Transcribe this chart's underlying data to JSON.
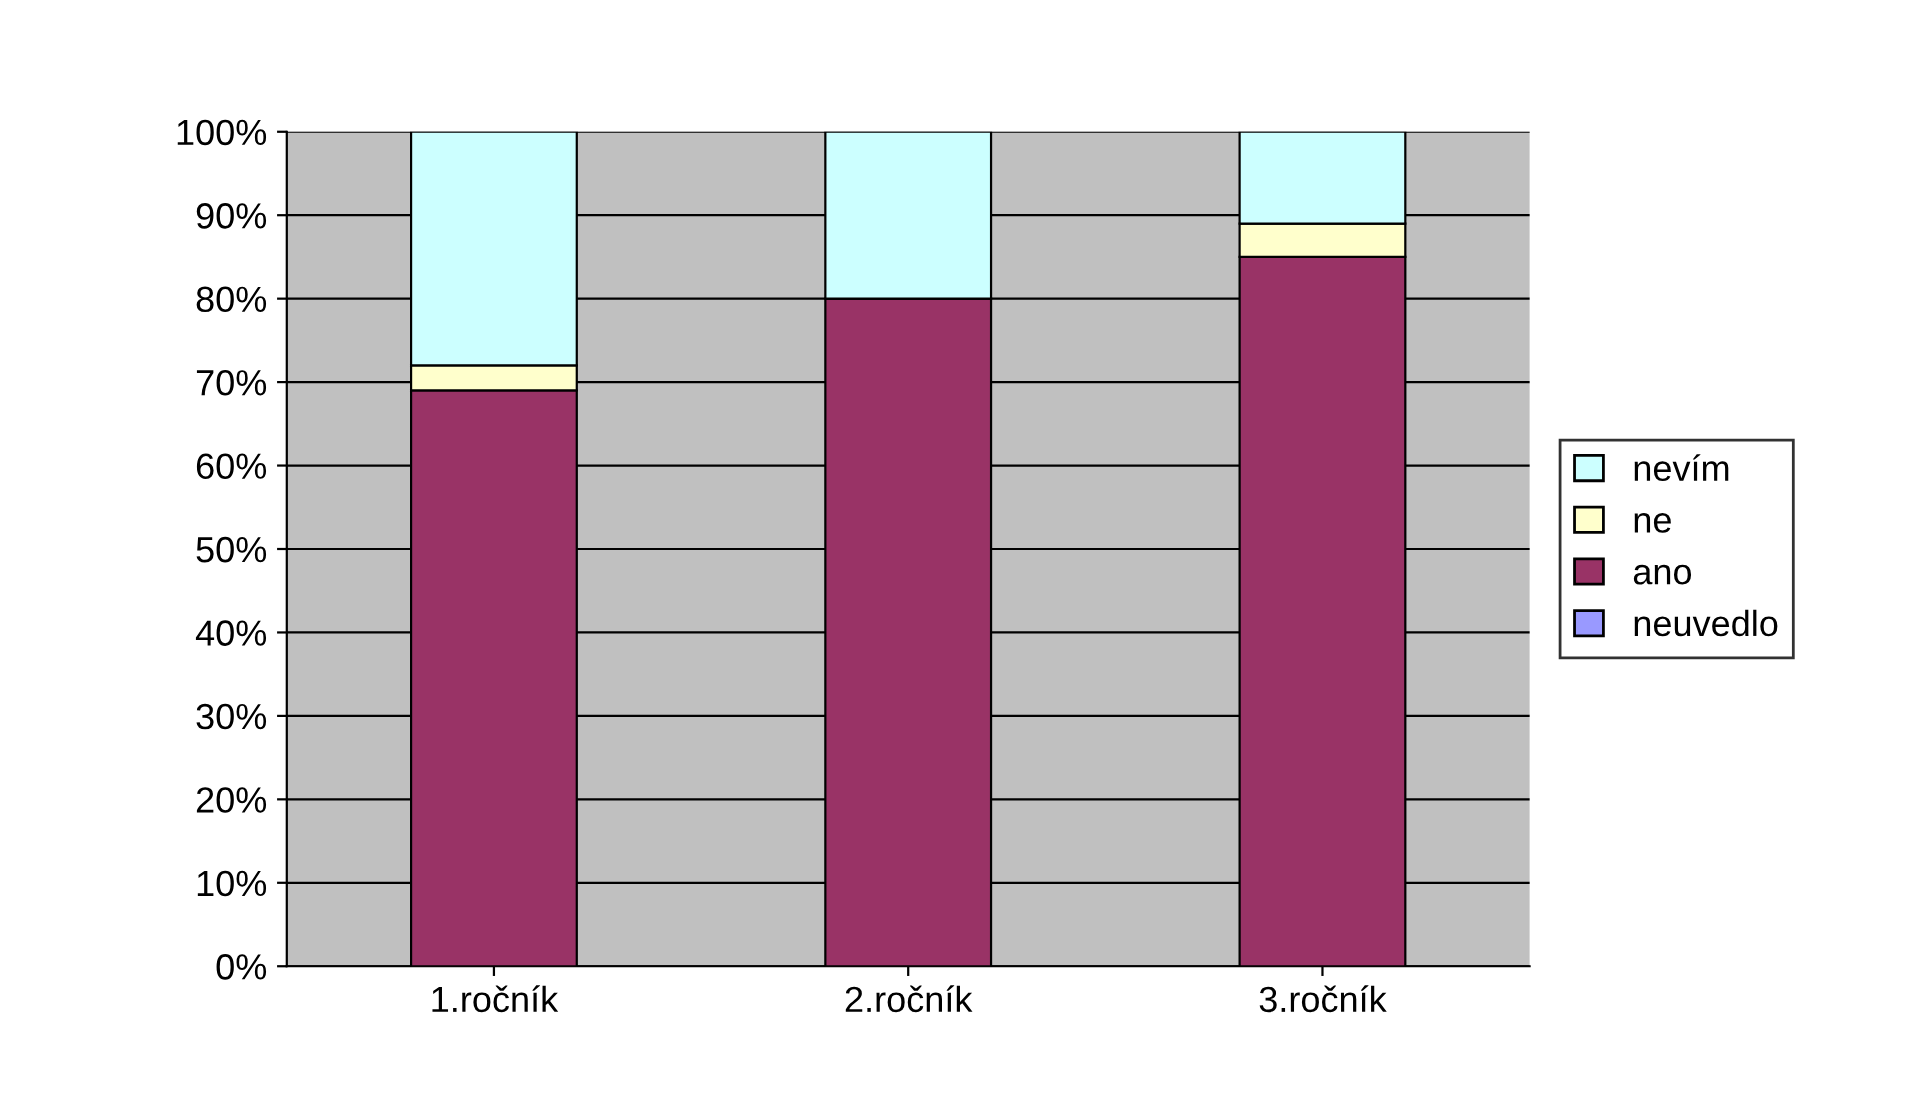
{
  "chart_data": {
    "type": "bar",
    "stacked": true,
    "categories": [
      "1.ročník",
      "2.ročník",
      "3.ročník"
    ],
    "series": [
      {
        "name": "neuvedlo",
        "color": "#9999ff",
        "values": [
          0,
          0,
          0
        ]
      },
      {
        "name": "ano",
        "color": "#993366",
        "values": [
          69,
          80,
          85
        ]
      },
      {
        "name": "ne",
        "color": "#ffffcc",
        "values": [
          3,
          0,
          4
        ]
      },
      {
        "name": "nevím",
        "color": "#ccffff",
        "values": [
          28,
          20,
          11
        ]
      }
    ],
    "ylim": [
      0,
      100
    ],
    "yticks": [
      {
        "value": 0,
        "label": "0%"
      },
      {
        "value": 10,
        "label": "10%"
      },
      {
        "value": 20,
        "label": "20%"
      },
      {
        "value": 30,
        "label": "30%"
      },
      {
        "value": 40,
        "label": "40%"
      },
      {
        "value": 50,
        "label": "50%"
      },
      {
        "value": 60,
        "label": "60%"
      },
      {
        "value": 70,
        "label": "70%"
      },
      {
        "value": 80,
        "label": "80%"
      },
      {
        "value": 90,
        "label": "90%"
      },
      {
        "value": 100,
        "label": "100%"
      }
    ],
    "grid": "y",
    "legend": "right"
  }
}
